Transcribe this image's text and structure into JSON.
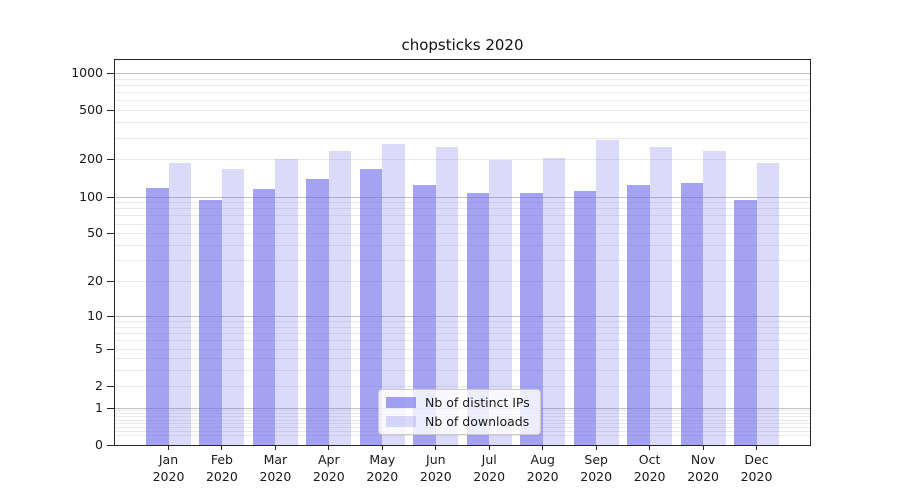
{
  "figure": {
    "background": "#ffffff"
  },
  "chart_data": {
    "type": "bar",
    "title": "chopsticks 2020",
    "x_months": [
      "Jan",
      "Feb",
      "Mar",
      "Apr",
      "May",
      "Jun",
      "Jul",
      "Aug",
      "Sep",
      "Oct",
      "Nov",
      "Dec"
    ],
    "year": "2020",
    "categories": [
      "Jan 2020",
      "Feb 2020",
      "Mar 2020",
      "Apr 2020",
      "May 2020",
      "Jun 2020",
      "Jul 2020",
      "Aug 2020",
      "Sep 2020",
      "Oct 2020",
      "Nov 2020",
      "Dec 2020"
    ],
    "series": [
      {
        "name": "Nb of distinct IPs",
        "color": "rgba(106,106,232,0.62)",
        "color_solid": "#a3a3ef",
        "values": [
          117,
          94,
          116,
          140,
          166,
          124,
          107,
          106,
          110,
          125,
          128,
          93
        ]
      },
      {
        "name": "Nb of downloads",
        "color": "rgba(106,106,232,0.24)",
        "color_solid": "#dbdbf8",
        "values": [
          187,
          166,
          202,
          234,
          269,
          251,
          197,
          206,
          287,
          250,
          233,
          187
        ]
      }
    ],
    "yscale": "log1p",
    "ylabel": "",
    "xlabel": "",
    "y_ticks": [
      0,
      1,
      2,
      5,
      10,
      20,
      50,
      100,
      200,
      500,
      1000
    ],
    "y_major_gridlines": [
      1,
      10,
      100,
      1000
    ],
    "ylim": [
      0,
      1289
    ],
    "grid": true,
    "legend_position": "lower-center-inside",
    "grid_color_major": "#c2c2c2",
    "grid_color_minor": "#eaeaea"
  }
}
